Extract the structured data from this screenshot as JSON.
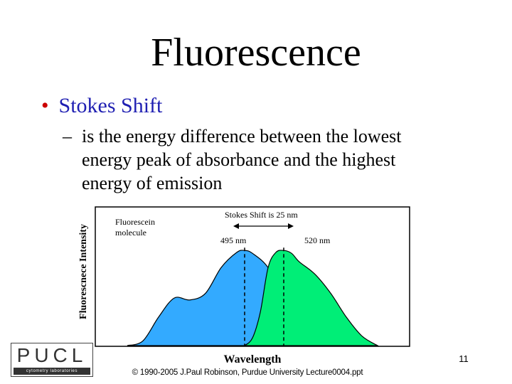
{
  "slide": {
    "title": "Fluorescence",
    "bullet": "Stokes Shift",
    "subbullet_dash": "–",
    "subbullet_lines": [
      "is the energy difference between the lowest",
      "energy peak of absorbance and the highest",
      "energy of emission"
    ],
    "page_number": "11",
    "copyright": "© 1990-2005 J.Paul Robinson, Purdue University Lecture0004.ppt"
  },
  "logo": {
    "text": "PUCL",
    "subtitle": "cytometry laboratories"
  },
  "colors": {
    "bullet_dot": "#cc0000",
    "bullet_text": "#1f1fb2",
    "absorption_fill": "#33aaff",
    "emission_fill": "#00ee77"
  },
  "chart_data": {
    "type": "area",
    "title": "",
    "xlabel": "Wavelength",
    "ylabel": "Fluorescnece Intensity",
    "grid": false,
    "legend": "none",
    "series": [
      {
        "name": "",
        "peak": 495,
        "x": [
          420,
          430,
          440,
          450,
          460,
          470,
          480,
          490,
          495,
          500,
          510,
          520,
          530,
          540
        ],
        "values": [
          0,
          0.05,
          0.3,
          0.5,
          0.48,
          0.55,
          0.82,
          0.98,
          1.0,
          0.97,
          0.82,
          0.5,
          0.15,
          0
        ]
      },
      {
        "name": "",
        "peak": 520,
        "x": [
          495,
          500,
          505,
          510,
          515,
          520,
          525,
          530,
          540,
          550,
          560,
          570,
          580
        ],
        "values": [
          0,
          0.08,
          0.35,
          0.82,
          0.98,
          1.0,
          0.97,
          0.88,
          0.75,
          0.55,
          0.3,
          0.1,
          0
        ]
      }
    ],
    "annotations": [
      {
        "text": "Fluorescein",
        "kind": "note"
      },
      {
        "text": "molecule",
        "kind": "note"
      },
      {
        "text": "Stokes Shift is 25 nm",
        "kind": "arrow",
        "from": 495,
        "to": 520
      },
      {
        "text": "495 nm",
        "kind": "peak-label",
        "at": 495
      },
      {
        "text": "520 nm",
        "kind": "peak-label",
        "at": 520
      }
    ],
    "xlim": [
      400,
      600
    ],
    "ylim": [
      0,
      1.45
    ]
  }
}
